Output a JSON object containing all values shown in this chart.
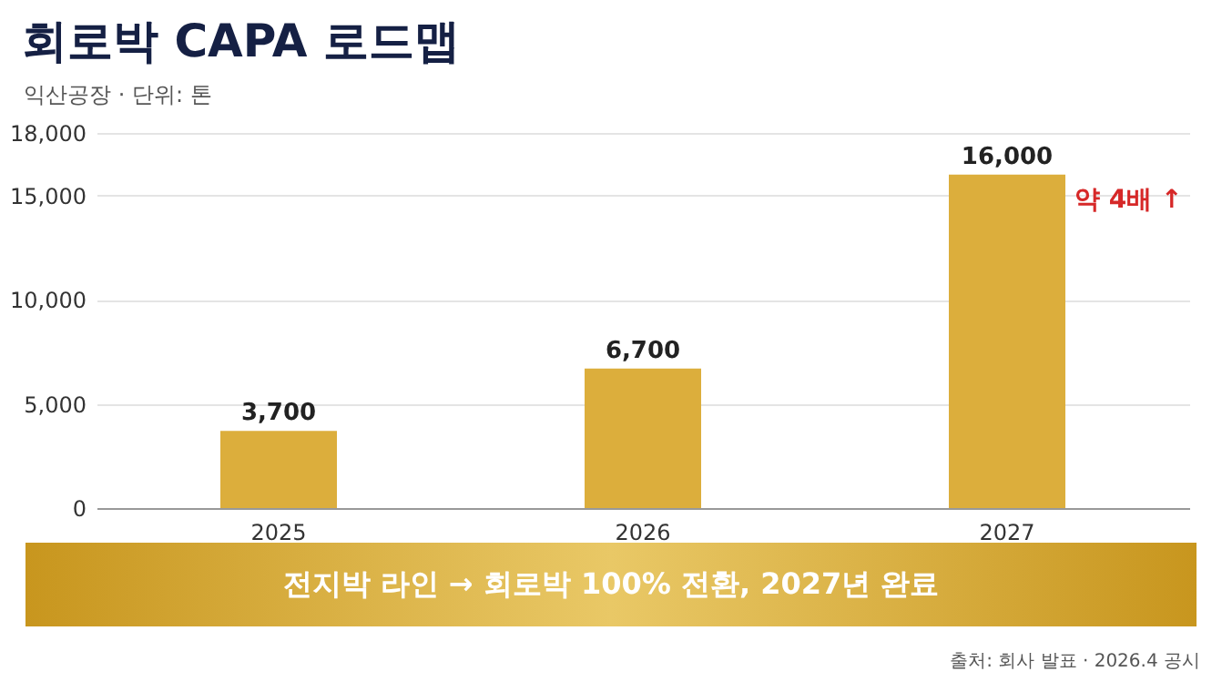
{
  "chart_data": {
    "type": "bar",
    "title": "회로박 CAPA 로드맵",
    "subtitle": "익산공장 · 단위: 톤",
    "categories": [
      "2025",
      "2026",
      "2027"
    ],
    "values": [
      3700,
      6700,
      16000
    ],
    "color": "#dcae3c",
    "value_labels": [
      "3,700",
      "6,700",
      "16,000"
    ],
    "ylim": [
      0,
      18000
    ],
    "yticks": [
      {
        "value": 0,
        "label": "0"
      },
      {
        "value": 5000,
        "label": "5,000"
      },
      {
        "value": 10000,
        "label": "10,000"
      },
      {
        "value": 15000,
        "label": "15,000"
      },
      {
        "value": 18000,
        "label": "18,000"
      }
    ],
    "grid": "y",
    "annotations": [
      "약 4배 ↑",
      "전지박 라인 → 회로박 100% 전환, 2027년 완료",
      "출처: 회사 발표 · 2026.4 공시"
    ]
  }
}
